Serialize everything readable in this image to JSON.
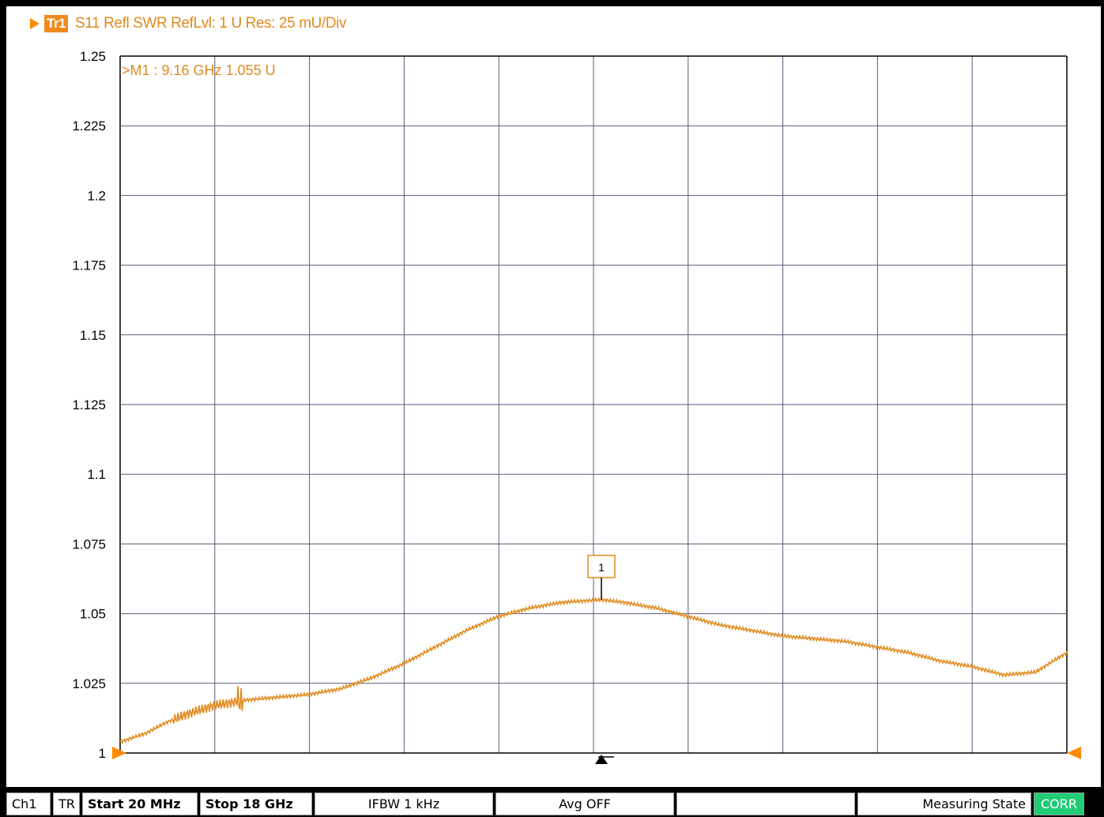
{
  "trace_header": {
    "badge": "Tr1",
    "description": "S11 Refl SWR RefLvl: 1  U Res: 25 mU/Div"
  },
  "marker": {
    "readout": ">M1 :  9.16 GHz  1.055  U",
    "number_label": "1",
    "x_ghz": 9.16,
    "y": 1.055
  },
  "colors": {
    "trace": "#e08a1e",
    "grid": "#5a5a7a",
    "corr_badge": "#22cc77"
  },
  "chart_data": {
    "type": "line",
    "title": "S11 Refl SWR RefLvl: 1  U Res: 25 mU/Div",
    "xlabel": "",
    "ylabel": "",
    "xlim": [
      0.02,
      18
    ],
    "ylim": [
      1,
      1.25
    ],
    "y_ticks": [
      "1",
      "1.025",
      "1.05",
      "1.075",
      "1.1",
      "1.125",
      "1.15",
      "1.175",
      "1.2",
      "1.225",
      "1.25"
    ],
    "x_divisions": 10,
    "grid": true,
    "series": [
      {
        "x": [
          0.02,
          0.5,
          0.9,
          1.3,
          1.8,
          2.4,
          3.0,
          3.6,
          4.2,
          4.8,
          5.4,
          6.0,
          6.6,
          7.2,
          7.8,
          8.4,
          9.0,
          9.16,
          9.6,
          10.2,
          10.8,
          11.4,
          12.0,
          12.6,
          13.2,
          13.8,
          14.4,
          15.0,
          15.6,
          16.2,
          16.8,
          17.4,
          18.0
        ],
        "y": [
          1.004,
          1.007,
          1.011,
          1.014,
          1.017,
          1.019,
          1.02,
          1.021,
          1.023,
          1.027,
          1.032,
          1.038,
          1.044,
          1.049,
          1.052,
          1.054,
          1.0548,
          1.055,
          1.054,
          1.052,
          1.049,
          1.046,
          1.044,
          1.042,
          1.041,
          1.04,
          1.038,
          1.036,
          1.033,
          1.031,
          1.028,
          1.029,
          1.036
        ]
      }
    ]
  },
  "status_bar": {
    "channel": "Ch1",
    "mode": "TR",
    "start": "Start 20 MHz",
    "stop": "Stop 18 GHz",
    "ifbw": "IFBW 1 kHz",
    "avg": "Avg OFF",
    "empty": "",
    "state": "Measuring State",
    "corr": "CORR"
  }
}
